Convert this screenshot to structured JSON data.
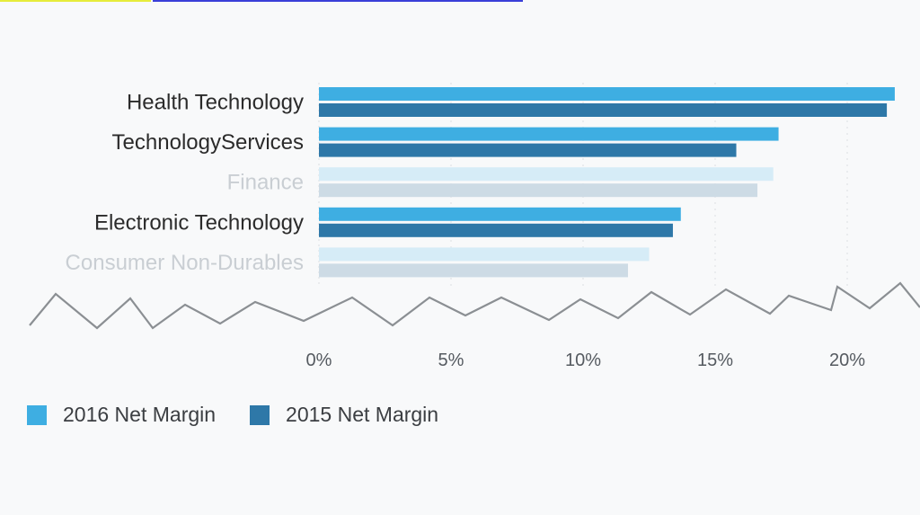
{
  "colors": {
    "series_2016": "#3eaee2",
    "series_2015": "#2e78a8",
    "series_2016_dim": "#d6ecf7",
    "series_2015_dim": "#cddbe5",
    "grid": "#dcdfe2",
    "zigzag": "#8b8f93"
  },
  "chart_data": {
    "type": "bar",
    "orientation": "horizontal",
    "categories": [
      "Health Technology",
      "TechnologyServices",
      "Finance",
      "Electronic Technology",
      "Consumer Non-Durables"
    ],
    "dimmed_categories": [
      "Finance",
      "Consumer Non-Durables"
    ],
    "series": [
      {
        "name": "2016 Net Margin",
        "values": [
          21.8,
          17.4,
          17.2,
          13.7,
          12.5
        ]
      },
      {
        "name": "2015 Net Margin",
        "values": [
          21.5,
          15.8,
          16.6,
          13.4,
          11.7
        ]
      }
    ],
    "xlim": [
      0,
      22.5
    ],
    "x_ticks": [
      {
        "value": 0,
        "label": "0%"
      },
      {
        "value": 5,
        "label": "5%"
      },
      {
        "value": 10,
        "label": "10%"
      },
      {
        "value": 15,
        "label": "15%"
      },
      {
        "value": 20,
        "label": "20%"
      }
    ],
    "axis_break": true,
    "grid": true,
    "legend_position": "bottom-left"
  },
  "legend": {
    "items": [
      {
        "label": "2016 Net Margin",
        "color": "#3eaee2"
      },
      {
        "label": "2015 Net Margin",
        "color": "#2e78a8"
      }
    ]
  }
}
